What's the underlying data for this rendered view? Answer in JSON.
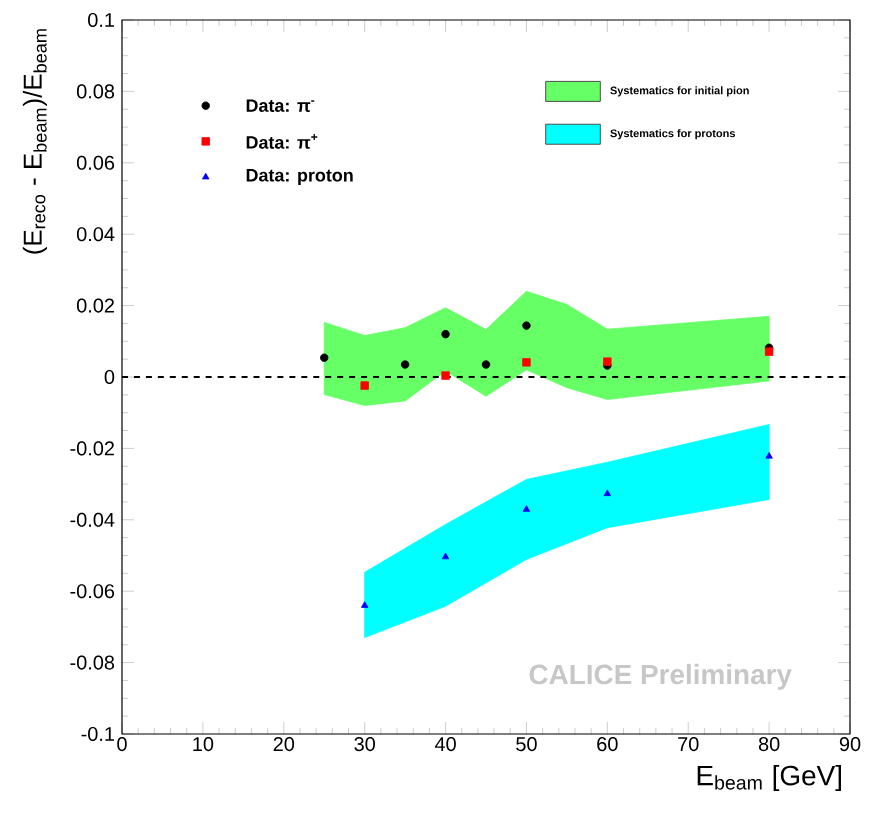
{
  "chart_data": {
    "type": "scatter",
    "xlabel": "E$_{beam}$ [GeV]",
    "ylabel": "(E$_{reco}$ - E$_{beam}$)/E$_{beam}$",
    "xlim": [
      0,
      90
    ],
    "ylim": [
      -0.1,
      0.1
    ],
    "xticks": [
      0,
      10,
      20,
      30,
      40,
      50,
      60,
      70,
      80,
      90
    ],
    "yticks": [
      -0.1,
      -0.08,
      -0.06,
      -0.04,
      -0.02,
      0,
      0.02,
      0.04,
      0.06,
      0.08,
      0.1
    ],
    "legend": "top",
    "series": [
      {
        "type": "area",
        "name": "Systematics for initial pion",
        "color": "#66ff66",
        "x": [
          25,
          30,
          35,
          40,
          45,
          50,
          55,
          60,
          80
        ],
        "values": [
          null,
          null,
          null,
          null,
          null,
          null,
          null,
          null,
          null
        ],
        "lower": [
          -0.0049,
          -0.008,
          -0.0067,
          0.0017,
          -0.0054,
          0.002,
          -0.003,
          -0.0063,
          -0.0011
        ],
        "upper": [
          0.0153,
          0.0116,
          0.0138,
          0.0194,
          0.0133,
          0.024,
          0.0203,
          0.0134,
          0.017
        ]
      },
      {
        "type": "area",
        "name": "Systematics for protons",
        "color": "#00ffff",
        "x": [
          30,
          40,
          50,
          60,
          80
        ],
        "values": [
          null,
          null,
          null,
          null,
          null
        ],
        "lower": [
          -0.073,
          -0.0642,
          -0.0511,
          -0.0422,
          -0.0343
        ],
        "upper": [
          -0.0547,
          -0.0413,
          -0.0287,
          -0.0239,
          -0.0133
        ]
      },
      {
        "name": "Data: π$^{-}$",
        "color": "#000000",
        "marker": "circle",
        "x": [
          25,
          35,
          40,
          45,
          50,
          60,
          80
        ],
        "values": [
          0.0054,
          0.0035,
          0.012,
          0.0035,
          0.0144,
          0.0032,
          0.0082
        ]
      },
      {
        "name": "Data: π$^{+}$",
        "color": "#ff0000",
        "marker": "square",
        "x": [
          30,
          40,
          50,
          60,
          80
        ],
        "values": [
          -0.0024,
          0.0004,
          0.0041,
          0.0043,
          0.0071
        ]
      },
      {
        "name": "Data: proton",
        "color": "#0000ff",
        "marker": "triangle",
        "x": [
          30,
          40,
          50,
          60,
          80
        ],
        "values": [
          -0.064,
          -0.0504,
          -0.0371,
          -0.0327,
          -0.0222
        ]
      }
    ],
    "ref_lines": [
      {
        "axis": "y",
        "value": 0,
        "line_style": "dashed",
        "color": "#000000"
      }
    ],
    "annotations": [
      "CALICE Preliminary"
    ]
  }
}
